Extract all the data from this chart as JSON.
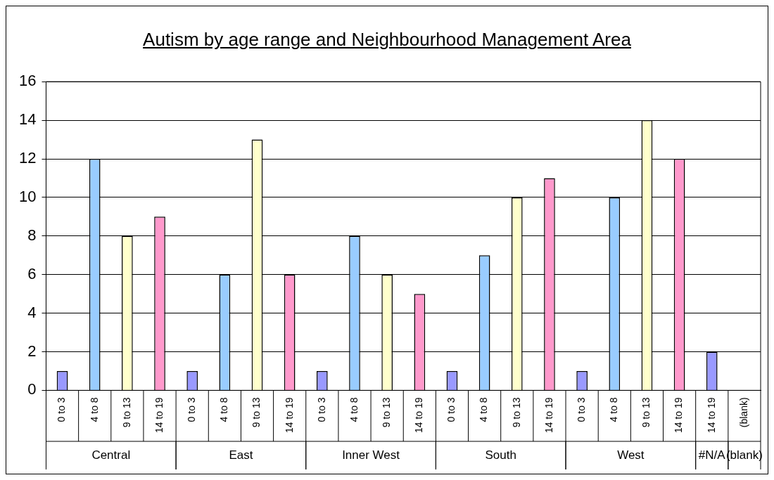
{
  "chart_data": {
    "type": "bar",
    "title": "Autism by age range and Neighbourhood Management Area",
    "categories": [
      "0 to 3",
      "4 to 8",
      "9 to 13",
      "14 to 19",
      "0 to 3",
      "4 to 8",
      "9 to 13",
      "14 to 19",
      "0 to 3",
      "4 to 8",
      "9 to 13",
      "14 to 19",
      "0 to 3",
      "4 to 8",
      "9 to 13",
      "14 to 19",
      "0 to 3",
      "4 to 8",
      "9 to 13",
      "14 to 19",
      "14 to 19",
      "(blank)"
    ],
    "values": [
      1,
      12,
      8,
      9,
      1,
      6,
      13,
      6,
      1,
      8,
      6,
      5,
      1,
      7,
      10,
      11,
      1,
      10,
      14,
      12,
      2,
      null
    ],
    "colors": [
      "#9999ff",
      "#99ccff",
      "#ffffcc",
      "#ff99cc",
      "#9999ff",
      "#99ccff",
      "#ffffcc",
      "#ff99cc",
      "#9999ff",
      "#99ccff",
      "#ffffcc",
      "#ff99cc",
      "#9999ff",
      "#99ccff",
      "#ffffcc",
      "#ff99cc",
      "#9999ff",
      "#99ccff",
      "#ffffcc",
      "#ff99cc",
      "#9999ff",
      "#9999ff"
    ],
    "annotations": [
      "Central",
      "East",
      "Inner West",
      "South",
      "West",
      "#N/A",
      "(blank)"
    ],
    "ylim": [
      0,
      16
    ],
    "yticks": [
      0,
      2,
      4,
      6,
      8,
      10,
      12,
      14,
      16
    ],
    "grid": "y",
    "legend": false
  }
}
